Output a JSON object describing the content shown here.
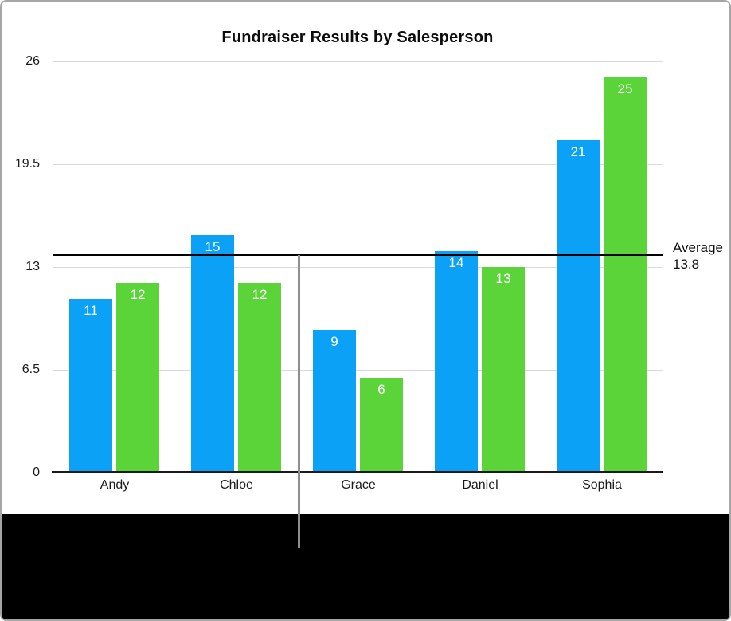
{
  "chart_data": {
    "type": "bar",
    "title": "Fundraiser Results by Salesperson",
    "categories": [
      "Andy",
      "Chloe",
      "Grace",
      "Daniel",
      "Sophia"
    ],
    "series": [
      {
        "name": "blue-series",
        "color": "#0aa1f7",
        "values": [
          11,
          15,
          9,
          14,
          21
        ]
      },
      {
        "name": "green-series",
        "color": "#5bd43a",
        "values": [
          12,
          12,
          6,
          13,
          25
        ]
      }
    ],
    "bar_labels_shown": true,
    "xlabel": "",
    "ylabel": "",
    "yticks": [
      0,
      6.5,
      13,
      19.5,
      26
    ],
    "ylim": [
      0,
      26
    ],
    "grid": true,
    "legend_position": "none",
    "annotation": {
      "label": "Average",
      "value_text": "13.8",
      "value": 13.8,
      "line_color": "#000000"
    }
  },
  "colors": {
    "gridline": "#d9d9d9",
    "axis": "#1a1a1a",
    "pointer_line": "#8e8e8e",
    "bottom_band": "#000000"
  }
}
